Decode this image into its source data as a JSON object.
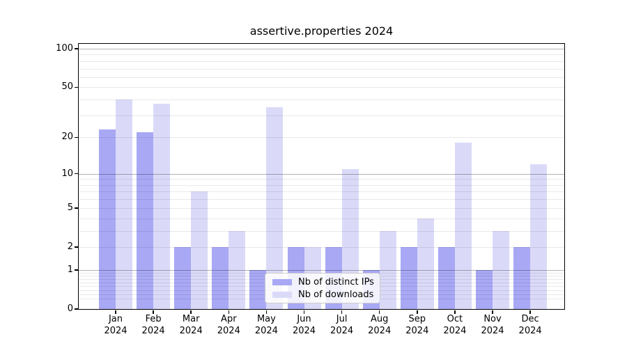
{
  "chart_data": {
    "type": "bar",
    "title": "assertive.properties 2024",
    "categories": [
      "Jan 2024",
      "Feb 2024",
      "Mar 2024",
      "Apr 2024",
      "May 2024",
      "Jun 2024",
      "Jul 2024",
      "Aug 2024",
      "Sep 2024",
      "Oct 2024",
      "Nov 2024",
      "Dec 2024"
    ],
    "series": [
      {
        "name": "Nb of distinct IPs",
        "color": "#a8a8f5",
        "values": [
          23,
          22,
          2,
          2,
          1,
          2,
          2,
          1,
          2,
          2,
          1,
          2
        ]
      },
      {
        "name": "Nb of downloads",
        "color": "#dadaf8",
        "values": [
          40,
          37,
          7,
          3,
          35,
          2,
          11,
          3,
          4,
          18,
          3,
          12
        ]
      }
    ],
    "xlabel": "",
    "ylabel": "",
    "yscale": "log1p",
    "ylim": [
      0,
      109
    ],
    "ytick_values": [
      0,
      1,
      2,
      5,
      10,
      20,
      50,
      100
    ],
    "ytick_labels": [
      "0",
      "1",
      "2",
      "5",
      "10",
      "20",
      "50",
      "100"
    ],
    "grid": "on",
    "major_grid_values": [
      1,
      10,
      100
    ],
    "legend_position": "lower center"
  }
}
